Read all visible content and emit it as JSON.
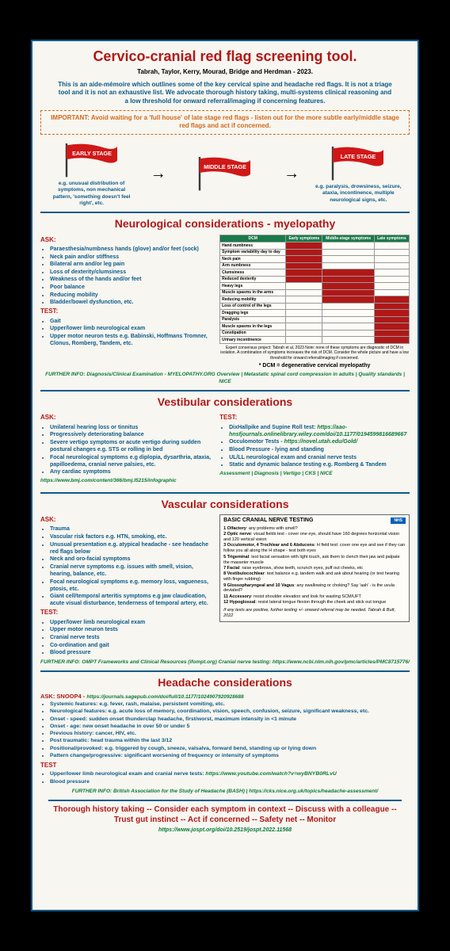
{
  "title": "Cervico-cranial red flag screening tool.",
  "authors": "Tabrah, Taylor, Kerry, Mourad, Bridge and Herdman - 2023.",
  "intro": "This is an aide-mémoire which outlines some of the key cervical spine and headache red flags. It is not a triage tool and it is not an exhaustive list.\nWe advocate thorough history taking, multi-systems clinical reasoning and a low threshold for onward referral/imaging if concerning features.",
  "important": "IMPORTANT: Avoid waiting for a 'full house' of late stage red flags - listen out for the more subtle early/middle stage red flags and act if concerned.",
  "flags": {
    "early": {
      "label": "EARLY STAGE",
      "caption": "e.g. unusual distribution of symptoms, non mechanical pattern, 'something doesn't feel right', etc."
    },
    "middle": {
      "label": "MIDDLE STAGE",
      "caption": ""
    },
    "late": {
      "label": "LATE STAGE",
      "caption": "e.g. paralysis, drowsiness, seizure, ataxia, incontinence, multiple neurological signs, etc."
    },
    "flag_color": "#d01818",
    "pole_color": "#3a3a3a"
  },
  "neuro": {
    "title": "Neurological considerations - myelopathy",
    "ask_label": "ASK:",
    "ask": [
      "Paraesthesia/numbness hands (glove) and/or feet (sock)",
      "Neck pain and/or stiffness",
      "Bilateral arm and/or leg pain",
      "Loss of dexterity/clumsiness",
      "Weakness of the hands and/or feet",
      "Poor balance",
      "Reducing mobility",
      "Bladder/bowel dysfunction, etc."
    ],
    "test_label": "TEST:",
    "test": [
      "Gait",
      "Upper/lower limb neurological exam",
      "Upper motor neuron tests e.g. Babinski, Hoffmans Tromner, Clonus, Romberg, Tandem, etc."
    ],
    "dcm": {
      "corner": "DCM",
      "headers": [
        "Early symptoms",
        "Middle-stage symptoms",
        "Late symptoms"
      ],
      "rows": [
        {
          "label": "Hand numbness",
          "cells": [
            1,
            0,
            0
          ]
        },
        {
          "label": "Symptom variability day to day",
          "cells": [
            1,
            0,
            0
          ]
        },
        {
          "label": "Neck pain",
          "cells": [
            1,
            0,
            0
          ]
        },
        {
          "label": "Arm numbness",
          "cells": [
            1,
            0,
            0
          ]
        },
        {
          "label": "Clumsiness",
          "cells": [
            1,
            1,
            0
          ]
        },
        {
          "label": "Reduced dexterity",
          "cells": [
            1,
            1,
            0
          ]
        },
        {
          "label": "Heavy legs",
          "cells": [
            0,
            1,
            0
          ]
        },
        {
          "label": "Muscle spasms in the arms",
          "cells": [
            0,
            1,
            0
          ]
        },
        {
          "label": "Reducing mobility",
          "cells": [
            0,
            1,
            1
          ]
        },
        {
          "label": "Loss of control of the legs",
          "cells": [
            0,
            0,
            1
          ]
        },
        {
          "label": "Dragging legs",
          "cells": [
            0,
            0,
            1
          ]
        },
        {
          "label": "Paralysis",
          "cells": [
            0,
            0,
            1
          ]
        },
        {
          "label": "Muscle spasms in the legs",
          "cells": [
            0,
            0,
            1
          ]
        },
        {
          "label": "Constipation",
          "cells": [
            0,
            0,
            1
          ]
        },
        {
          "label": "Urinary incontinence",
          "cells": [
            0,
            0,
            1
          ]
        }
      ],
      "caption": "Expert consensus project: Tabrah et al, 2023\nNote: none of these symptoms are diagnostic of DCM in isolation. A combination of symptoms increases the risk of DCM. Consider the whole picture and have a low threshold for onward referral/imaging if concerned.",
      "def": "* DCM = degenerative cervical myelopathy"
    },
    "further": "FURTHER INFO: Diagnosis/Clinical Examination - MYELOPATHY.ORG\nOverview | Metastatic spinal cord compression in adults | Quality standards | NICE"
  },
  "vestib": {
    "title": "Vestibular considerations",
    "ask_label": "ASK:",
    "ask": [
      "Unilateral hearing loss or tinnitus",
      "Progressively deteriorating balance",
      "Severe vertigo symptoms or acute vertigo during sudden postural changes e.g. STS or rolling in bed",
      "Focal neurological symptoms e.g diplopia, dysarthria, ataxia, papilloedema, cranial nerve palsies, etc.",
      "Any cardiac symptoms"
    ],
    "ask_link": "https://www.bmj.com/content/366/bmj.l5215/infographic",
    "test_label": "TEST:",
    "test_lines": [
      {
        "text": "DixHallpike and Supine Roll test: ",
        "link": "https://aao-hnsfjournals.onlinelibrary.wiley.com/doi/10.1177/0194599816689667"
      },
      {
        "text": "Occulomotor Tests - ",
        "link": "https://novel.utah.edu/Gold/"
      },
      {
        "text": "Blood Pressure - lying and standing",
        "link": ""
      },
      {
        "text": "UL/LL neurological exam and cranial nerve tests",
        "link": ""
      },
      {
        "text": "Static and dynamic balance testing e.g. Romberg & Tandem",
        "link": ""
      }
    ],
    "further": "Assessment | Diagnosis | Vertigo | CKS | NICE"
  },
  "vascular": {
    "title": "Vascular considerations",
    "ask_label": "ASK:",
    "ask": [
      "Trauma",
      "Vascular risk factors e.g. HTN, smoking, etc.",
      "Unusual presentation e.g. atypical headache - see headache red flags below",
      "Neck and oro-facial symptoms",
      "Cranial nerve symptoms e.g. issues with smell, vision, hearing, balance, etc.",
      "Focal neurological symptoms e.g. memory loss, vagueness, ptosis, etc.",
      "Giant cell/temporal arteritis symptoms e.g jaw claudication, acute visual disturbance, tenderness of temporal artery, etc."
    ],
    "test_label": "TEST:",
    "test": [
      "Upper/lower limb neurological exam",
      "Upper motor neuron tests",
      "Cranial nerve tests",
      "Co-ordination and gait",
      "Blood pressure"
    ],
    "cn_box": {
      "nhs": "NHS",
      "nhs_sub": "Hounslow and Richmond Community Healthcare",
      "title": "BASIC CRANIAL NERVE TESTING",
      "lines": [
        "<b>1 Olfactory</b>: any problems with smell?",
        "<b>2 Optic nerve</b>: visual fields test - cover one eye, should have 160 degrees horizontal vision and 120 vertical vision",
        "<b>3 Occulomotor, 4 Trochlear and 6 Abducens</b>: H field test: cover one eye and see if they can follow you all along the H shape - test both eyes",
        "<b>5 Trigeminal</b>: test facial sensation with light touch, ask them to clench their jaw and palpate the masseter muscle",
        "<b>7 Facial</b>: raise eyebrows, show teeth, scrunch eyes, puff out cheeks, etc",
        "<b>8 Vestibulocochlear</b>: test balance e.g. tandem walk and ask about hearing (or test hearing with finger rubbing)",
        "<b>9 Glossopharyngeal and 10 Vagus</b>: any swallowing or choking? Say 'aah' - is the uvula deviated?",
        "<b>11 Accessory</b>: resist shoulder elevation and look for wasting SCM/UFT",
        "<b>12 Hypoglossal</b>: resist lateral tongue flexion through the cheek and stick out tongue"
      ],
      "footer": "If any tests are positive, further testing +/- onward referral may be needed.   Tabrah & Butt, 2022"
    },
    "further": "FURTHER INFO: OMPT Frameworks and Clinical Resources (ifompt.org)\nCranial nerve testing: https://www.ncbi.nlm.nih.gov/pmc/articles/PMC8715776/"
  },
  "headache": {
    "title": "Headache considerations",
    "snoop_label": "ASK: SNOOP4 - ",
    "snoop_link": "https://journals.sagepub.com/doi/full/10.1177/1024907920928688",
    "ask": [
      "Systemic features: e.g. fever, rash, malaise, persistent vomiting, etc.",
      "Neurological features: e.g. acute loss of memory, coordination, vision, speech, confusion, seizure, significant weakness, etc.",
      "Onset - speed: sudden onset thunderclap headache, first/worst, maximum intensity in <1 minute",
      "Onset - age: new onset headache in over 50 or under 5",
      "Previous history: cancer, HIV, etc.",
      "Post traumatic: head trauma within the last 3/12",
      "Positional/provoked: e.g. triggered by cough, sneeze, valsalva, forward bend, standing up or lying down",
      "Pattern change/progressive: significant worsening of frequency or intensity of symptoms"
    ],
    "test_label": "TEST",
    "test": [
      {
        "text": "Upper/lower limb neurological exam and cranial nerve tests: ",
        "link": "https://www.youtube.com/watch?v=wyBNYB0RLvU"
      },
      {
        "text": "Blood pressure",
        "link": ""
      }
    ],
    "further": "FURTHER INFO: British Association for the Study of Headache (BASH) | https://cks.nice.org.uk/topics/headache-assessment/"
  },
  "closing": "Thorough history taking -- Consider each symptom in context -- Discuss with a colleague -- Trust gut instinct -- Act if concerned -- Safety net -- Monitor",
  "doi": "https://www.jospt.org/doi/10.2519/jospt.2022.11568"
}
